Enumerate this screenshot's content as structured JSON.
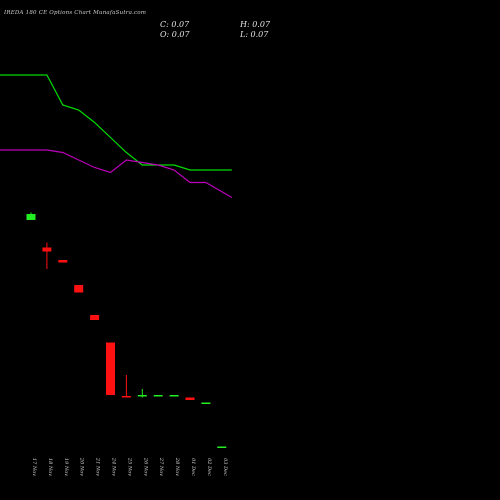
{
  "header": {
    "title": "IREDA 180  CE Options  Chart MunafaSutra.com",
    "open": "O: 0.07",
    "high": "H: 0.07",
    "low": "L: 0.07",
    "close": "C: 0.07"
  },
  "colors": {
    "background": "#000000",
    "up": "#22ee22",
    "down": "#ff1111",
    "ma_short": "#00dd00",
    "ma_long": "#bb00bb",
    "text": "#d8d8d8"
  },
  "chart_data": {
    "type": "candlestick",
    "categories": [
      "17 Nov",
      "18 Nov",
      "19 Nov",
      "20 Nov",
      "21 Nov",
      "24 Nov",
      "25 Nov",
      "26 Nov",
      "27 Nov",
      "28 Nov",
      "01 Dec",
      "02 Dec",
      "03 Dec"
    ],
    "candles": [
      {
        "open": 4.6,
        "high": 4.75,
        "low": 4.6,
        "close": 4.72,
        "dir": "up"
      },
      {
        "open": 4.05,
        "high": 4.15,
        "low": 3.62,
        "close": 3.97,
        "dir": "down"
      },
      {
        "open": 3.8,
        "high": 3.8,
        "low": 3.75,
        "close": 3.75,
        "dir": "down"
      },
      {
        "open": 3.3,
        "high": 3.3,
        "low": 3.15,
        "close": 3.15,
        "dir": "down"
      },
      {
        "open": 2.7,
        "high": 2.7,
        "low": 2.6,
        "close": 2.6,
        "dir": "down"
      },
      {
        "open": 2.15,
        "high": 2.15,
        "low": 1.1,
        "close": 1.1,
        "dir": "down"
      },
      {
        "open": 1.08,
        "high": 1.5,
        "low": 1.05,
        "close": 1.05,
        "dir": "down"
      },
      {
        "open": 1.1,
        "high": 1.22,
        "low": 1.05,
        "close": 1.1,
        "dir": "up"
      },
      {
        "open": 1.1,
        "high": 1.1,
        "low": 1.08,
        "close": 1.1,
        "dir": "up"
      },
      {
        "open": 1.1,
        "high": 1.1,
        "low": 1.08,
        "close": 1.1,
        "dir": "up"
      },
      {
        "open": 1.05,
        "high": 1.05,
        "low": 1.0,
        "close": 1.0,
        "dir": "down"
      },
      {
        "open": 0.95,
        "high": 0.95,
        "low": 0.93,
        "close": 0.95,
        "dir": "up"
      },
      {
        "open": 0.07,
        "high": 0.07,
        "low": 0.07,
        "close": 0.07,
        "dir": "up"
      }
    ],
    "series": [
      {
        "values": [
          7.5,
          7.5,
          6.9,
          6.8,
          6.55,
          6.25,
          5.95,
          5.7,
          5.7,
          5.7,
          5.6,
          5.6,
          5.6
        ]
      },
      {
        "values": [
          6.0,
          6.0,
          5.95,
          5.8,
          5.65,
          5.55,
          5.8,
          5.75,
          5.7,
          5.6,
          5.35,
          5.35,
          5.05
        ]
      }
    ],
    "ylim": [
      0.0,
      9.0
    ],
    "grid": false,
    "legend": "none"
  }
}
